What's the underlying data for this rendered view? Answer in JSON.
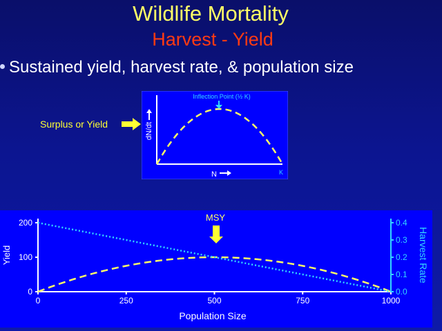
{
  "slide": {
    "title": "Wildlife Mortality",
    "subtitle": "Harvest - Yield",
    "bullet": "Sustained yield, harvest rate, & population size",
    "surplus_label": "Surplus or Yield"
  },
  "colors": {
    "title": "#ffff66",
    "subtitle": "#ff3a12",
    "yield_curve": "#ffff66",
    "harvest_rate": "#33d6ff",
    "plot_bg": "#0000ff",
    "arrow": "#ffff33"
  },
  "chart_data": [
    {
      "type": "line",
      "xlabel": "N",
      "ylabel": "dN/dt",
      "x_end_label": "K",
      "annotation": "Inflection Point (½ K)",
      "x": [
        0,
        0.1,
        0.2,
        0.3,
        0.4,
        0.5,
        0.6,
        0.7,
        0.8,
        0.9,
        1.0
      ],
      "series": [
        {
          "values": [
            0,
            0.36,
            0.64,
            0.84,
            0.96,
            1.0,
            0.96,
            0.84,
            0.64,
            0.36,
            0
          ]
        }
      ]
    },
    {
      "type": "line",
      "xlabel": "Population Size",
      "ylabel": "Yield",
      "y2label": "Harvest Rate",
      "annotation": "MSY",
      "annotation_x": 500,
      "xlim": [
        0,
        1000
      ],
      "ylim": [
        0,
        200
      ],
      "y2lim": [
        0,
        0.4
      ],
      "xticks": [
        "0",
        "250",
        "500",
        "750",
        "1000"
      ],
      "yticks": [
        "0",
        "100",
        "200"
      ],
      "y2ticks": [
        "0.0",
        "0.1",
        "0.2",
        "0.3",
        "0.4"
      ],
      "x": [
        0,
        100,
        200,
        300,
        400,
        500,
        600,
        700,
        800,
        900,
        1000
      ],
      "series": [
        {
          "values": [
            0,
            36,
            64,
            84,
            96,
            100,
            96,
            84,
            64,
            36,
            0
          ],
          "axis": "left"
        },
        {
          "values": [
            0.4,
            0.36,
            0.32,
            0.28,
            0.24,
            0.2,
            0.16,
            0.12,
            0.08,
            0.04,
            0.0
          ],
          "axis": "right"
        }
      ]
    }
  ]
}
